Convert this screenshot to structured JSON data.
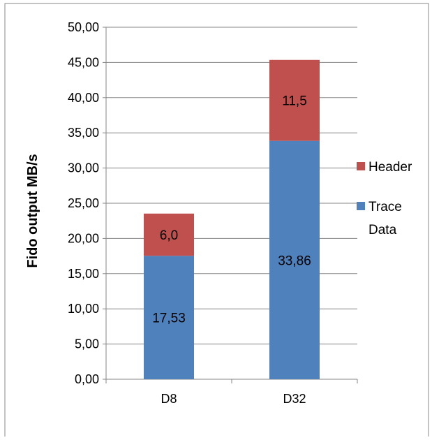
{
  "chart_data": {
    "type": "bar",
    "stacked": true,
    "categories": [
      "D8",
      "D32"
    ],
    "series": [
      {
        "name": "Trace Data",
        "values": [
          17.53,
          33.86
        ],
        "labels": [
          "17,53",
          "33,86"
        ],
        "color": "#4f81bd"
      },
      {
        "name": "Header",
        "values": [
          6.0,
          11.5
        ],
        "labels": [
          "6,0",
          "11,5"
        ],
        "color": "#c0504d"
      }
    ],
    "title": "",
    "xlabel": "",
    "ylabel": "Fido output MB/s",
    "ylim": [
      0,
      50
    ],
    "yticks": [
      0,
      5,
      10,
      15,
      20,
      25,
      30,
      35,
      40,
      45,
      50
    ],
    "ytick_labels": [
      "0,00",
      "5,00",
      "10,00",
      "15,00",
      "20,00",
      "25,00",
      "30,00",
      "35,00",
      "40,00",
      "45,00",
      "50,00"
    ],
    "grid": true,
    "legend_position": "right",
    "legend": [
      {
        "series": "Header",
        "lines": [
          "Header"
        ]
      },
      {
        "series": "Trace Data",
        "lines": [
          "Trace",
          "Data"
        ]
      }
    ]
  }
}
